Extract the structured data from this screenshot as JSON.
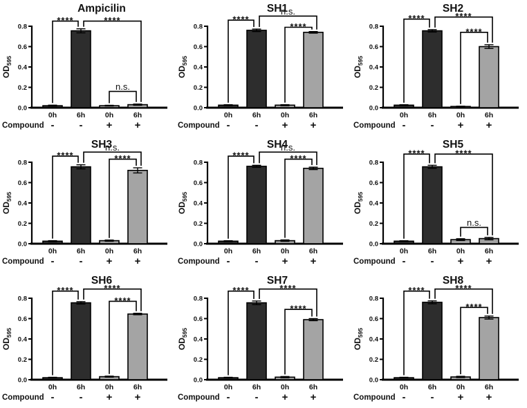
{
  "style": {
    "dark_bar_color": "#2d2d2d",
    "light_bar_color": "#a4a4a4",
    "axis_color": "#000000",
    "background": "#ffffff"
  },
  "chart_data": [
    {
      "type": "bar",
      "title": "Ampicilin",
      "ylabel": "OD",
      "ylabel_subscript": "595",
      "ylim": [
        0,
        0.8
      ],
      "yticks": [
        "0.0",
        "0.2",
        "0.4",
        "0.6",
        "0.8"
      ],
      "categories": [
        "0h",
        "6h",
        "0h",
        "6h"
      ],
      "row_label": "Compound",
      "compound": [
        "-",
        "-",
        "+",
        "+"
      ],
      "values": [
        0.02,
        0.755,
        0.02,
        0.03
      ],
      "errors": [
        0.005,
        0.02,
        0.004,
        0.006
      ],
      "bar_colors": [
        "dark",
        "dark",
        "light",
        "light"
      ],
      "brackets": [
        {
          "from": 0,
          "to": 1,
          "label": "****",
          "level": 0.85
        },
        {
          "from": 1,
          "to": 3,
          "label": "****",
          "level": 0.85
        },
        {
          "from": 2,
          "to": 3,
          "label": "n.s.",
          "level": 0.16
        }
      ]
    },
    {
      "type": "bar",
      "title": "SH1",
      "ylabel": "OD",
      "ylabel_subscript": "595",
      "ylim": [
        0,
        0.8
      ],
      "yticks": [
        "0.0",
        "0.2",
        "0.4",
        "0.6",
        "0.8"
      ],
      "categories": [
        "0h",
        "6h",
        "0h",
        "6h"
      ],
      "row_label": "Compound",
      "compound": [
        "-",
        "-",
        "+",
        "+"
      ],
      "values": [
        0.025,
        0.76,
        0.025,
        0.74
      ],
      "errors": [
        0.004,
        0.012,
        0.005,
        0.008
      ],
      "bar_colors": [
        "dark",
        "dark",
        "light",
        "light"
      ],
      "brackets": [
        {
          "from": 0,
          "to": 1,
          "label": "****",
          "level": 0.86
        },
        {
          "from": 1,
          "to": 3,
          "label": "n.s.",
          "level": 0.9
        },
        {
          "from": 2,
          "to": 3,
          "label": "****",
          "level": 0.79
        }
      ]
    },
    {
      "type": "bar",
      "title": "SH2",
      "ylabel": "OD",
      "ylabel_subscript": "595",
      "ylim": [
        0,
        0.8
      ],
      "yticks": [
        "0.0",
        "0.2",
        "0.4",
        "0.6",
        "0.8"
      ],
      "categories": [
        "0h",
        "6h",
        "0h",
        "6h"
      ],
      "row_label": "Compound",
      "compound": [
        "-",
        "-",
        "+",
        "+"
      ],
      "values": [
        0.025,
        0.755,
        0.012,
        0.6
      ],
      "errors": [
        0.004,
        0.012,
        0.003,
        0.018
      ],
      "bar_colors": [
        "dark",
        "dark",
        "light",
        "light"
      ],
      "brackets": [
        {
          "from": 0,
          "to": 1,
          "label": "****",
          "level": 0.87
        },
        {
          "from": 1,
          "to": 3,
          "label": "****",
          "level": 0.89
        },
        {
          "from": 2,
          "to": 3,
          "label": "****",
          "level": 0.74
        }
      ]
    },
    {
      "type": "bar",
      "title": "SH3",
      "ylabel": "OD",
      "ylabel_subscript": "595",
      "ylim": [
        0,
        0.8
      ],
      "yticks": [
        "0.0",
        "0.2",
        "0.4",
        "0.6",
        "0.8"
      ],
      "categories": [
        "0h",
        "6h",
        "0h",
        "6h"
      ],
      "row_label": "Compound",
      "compound": [
        "-",
        "-",
        "+",
        "+"
      ],
      "values": [
        0.025,
        0.755,
        0.03,
        0.72
      ],
      "errors": [
        0.005,
        0.02,
        0.006,
        0.025
      ],
      "bar_colors": [
        "dark",
        "dark",
        "light",
        "light"
      ],
      "brackets": [
        {
          "from": 0,
          "to": 1,
          "label": "****",
          "level": 0.86
        },
        {
          "from": 1,
          "to": 3,
          "label": "n.s.",
          "level": 0.9
        },
        {
          "from": 2,
          "to": 3,
          "label": "****",
          "level": 0.83
        }
      ]
    },
    {
      "type": "bar",
      "title": "SH4",
      "ylabel": "OD",
      "ylabel_subscript": "595",
      "ylim": [
        0,
        0.8
      ],
      "yticks": [
        "0.0",
        "0.2",
        "0.4",
        "0.6",
        "0.8"
      ],
      "categories": [
        "0h",
        "6h",
        "0h",
        "6h"
      ],
      "row_label": "Compound",
      "compound": [
        "-",
        "-",
        "+",
        "+"
      ],
      "values": [
        0.025,
        0.76,
        0.03,
        0.74
      ],
      "errors": [
        0.004,
        0.01,
        0.007,
        0.012
      ],
      "bar_colors": [
        "dark",
        "dark",
        "light",
        "light"
      ],
      "brackets": [
        {
          "from": 0,
          "to": 1,
          "label": "****",
          "level": 0.86
        },
        {
          "from": 1,
          "to": 3,
          "label": "n.s.",
          "level": 0.9
        },
        {
          "from": 2,
          "to": 3,
          "label": "****",
          "level": 0.83
        }
      ]
    },
    {
      "type": "bar",
      "title": "SH5",
      "ylabel": "OD",
      "ylabel_subscript": "595",
      "ylim": [
        0,
        0.8
      ],
      "yticks": [
        "0.0",
        "0.2",
        "0.4",
        "0.6",
        "0.8"
      ],
      "categories": [
        "0h",
        "6h",
        "0h",
        "6h"
      ],
      "row_label": "Compound",
      "compound": [
        "-",
        "-",
        "+",
        "+"
      ],
      "values": [
        0.025,
        0.755,
        0.04,
        0.05
      ],
      "errors": [
        0.004,
        0.015,
        0.009,
        0.012
      ],
      "bar_colors": [
        "dark",
        "dark",
        "light",
        "light"
      ],
      "brackets": [
        {
          "from": 0,
          "to": 1,
          "label": "****",
          "level": 0.88
        },
        {
          "from": 1,
          "to": 3,
          "label": "****",
          "level": 0.88
        },
        {
          "from": 2,
          "to": 3,
          "label": "n.s.",
          "level": 0.16
        }
      ]
    },
    {
      "type": "bar",
      "title": "SH6",
      "ylabel": "OD",
      "ylabel_subscript": "595",
      "ylim": [
        0,
        0.8
      ],
      "yticks": [
        "0.0",
        "0.2",
        "0.4",
        "0.6",
        "0.8"
      ],
      "categories": [
        "0h",
        "6h",
        "0h",
        "6h"
      ],
      "row_label": "Compound",
      "compound": [
        "-",
        "-",
        "+",
        "+"
      ],
      "values": [
        0.02,
        0.755,
        0.03,
        0.645
      ],
      "errors": [
        0.004,
        0.012,
        0.005,
        0.007
      ],
      "bar_colors": [
        "dark",
        "dark",
        "light",
        "light"
      ],
      "brackets": [
        {
          "from": 0,
          "to": 1,
          "label": "****",
          "level": 0.87
        },
        {
          "from": 1,
          "to": 3,
          "label": "****",
          "level": 0.89
        },
        {
          "from": 2,
          "to": 3,
          "label": "****",
          "level": 0.77
        }
      ]
    },
    {
      "type": "bar",
      "title": "SH7",
      "ylabel": "OD",
      "ylabel_subscript": "595",
      "ylim": [
        0,
        0.8
      ],
      "yticks": [
        "0.0",
        "0.2",
        "0.4",
        "0.6",
        "0.8"
      ],
      "categories": [
        "0h",
        "6h",
        "0h",
        "6h"
      ],
      "row_label": "Compound",
      "compound": [
        "-",
        "-",
        "+",
        "+"
      ],
      "values": [
        0.02,
        0.755,
        0.025,
        0.59
      ],
      "errors": [
        0.004,
        0.018,
        0.006,
        0.01
      ],
      "bar_colors": [
        "dark",
        "dark",
        "light",
        "light"
      ],
      "brackets": [
        {
          "from": 0,
          "to": 1,
          "label": "****",
          "level": 0.87
        },
        {
          "from": 1,
          "to": 3,
          "label": "****",
          "level": 0.89
        },
        {
          "from": 2,
          "to": 3,
          "label": "****",
          "level": 0.69
        }
      ]
    },
    {
      "type": "bar",
      "title": "SH8",
      "ylabel": "OD",
      "ylabel_subscript": "595",
      "ylim": [
        0,
        0.8
      ],
      "yticks": [
        "0.0",
        "0.2",
        "0.4",
        "0.6",
        "0.8"
      ],
      "categories": [
        "0h",
        "6h",
        "0h",
        "6h"
      ],
      "row_label": "Compound",
      "compound": [
        "-",
        "-",
        "+",
        "+"
      ],
      "values": [
        0.02,
        0.76,
        0.027,
        0.61
      ],
      "errors": [
        0.004,
        0.014,
        0.006,
        0.015
      ],
      "bar_colors": [
        "dark",
        "dark",
        "light",
        "light"
      ],
      "brackets": [
        {
          "from": 0,
          "to": 1,
          "label": "****",
          "level": 0.87
        },
        {
          "from": 1,
          "to": 3,
          "label": "****",
          "level": 0.89
        },
        {
          "from": 2,
          "to": 3,
          "label": "****",
          "level": 0.71
        }
      ]
    }
  ]
}
